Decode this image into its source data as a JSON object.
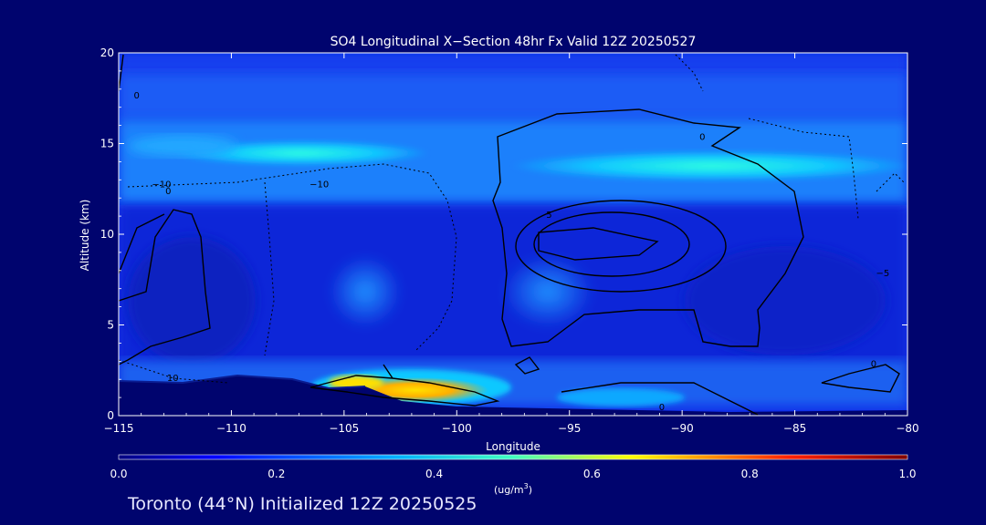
{
  "chart_data": {
    "type": "heatmap",
    "title": "SO4 Longitudinal X−Section 48hr  Fx Valid 12Z 20250527",
    "xlabel": "Longitude",
    "ylabel": "Altitude (km)",
    "xlim": [
      -115,
      -80
    ],
    "ylim": [
      0,
      20
    ],
    "x_ticks": [
      -115,
      -110,
      -105,
      -100,
      -95,
      -90,
      -85,
      -80
    ],
    "x_tick_labels": [
      "−115",
      "−110",
      "−105",
      "−100",
      "−95",
      "−90",
      "−85",
      "−80"
    ],
    "y_ticks": [
      0,
      5,
      10,
      15,
      20
    ],
    "y_tick_labels": [
      "0",
      "5",
      "10",
      "15",
      "20"
    ],
    "colorbar": {
      "min": 0.0,
      "max": 1.0,
      "ticks": [
        "0.0",
        "0.2",
        "0.4",
        "0.6",
        "0.8",
        "1.0"
      ],
      "label_main": "(ug/m",
      "label_sup": "3",
      "label_end": ")"
    },
    "contour_labels": [
      {
        "text": "0",
        "lon": -114.2,
        "alt": 17.5
      },
      {
        "text": "−10",
        "lon": -113.1,
        "alt": 12.6
      },
      {
        "text": "0",
        "lon": -112.8,
        "alt": 12.2
      },
      {
        "text": "−10",
        "lon": -106.1,
        "alt": 12.6
      },
      {
        "text": "0",
        "lon": -89.1,
        "alt": 15.2
      },
      {
        "text": "5",
        "lon": -95.9,
        "alt": 10.9
      },
      {
        "text": "0",
        "lon": -90.9,
        "alt": 0.3
      },
      {
        "text": "−5",
        "lon": -81.1,
        "alt": 7.7
      },
      {
        "text": "0",
        "lon": -81.5,
        "alt": 2.7
      },
      {
        "text": "10",
        "lon": -112.6,
        "alt": 1.9
      }
    ]
  },
  "footer": {
    "text": "Toronto (44°N) Initialized 12Z 20250525"
  }
}
